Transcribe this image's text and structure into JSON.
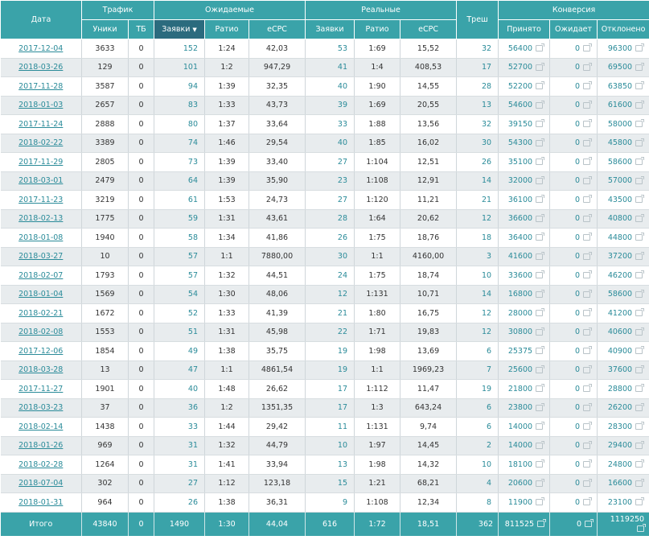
{
  "colors": {
    "header_bg": "#3aa3a9",
    "header_sorted_bg": "#2b6b7e",
    "link": "#2a8b99",
    "row_alt": "#e8ecee"
  },
  "header": {
    "date": "Дата",
    "traffic": "Трафик",
    "expected": "Ожидаемые",
    "real": "Реальные",
    "trash": "Треш",
    "conversion": "Конверсия",
    "uniques": "Уники",
    "tb": "ТБ",
    "requests": "Заявки",
    "requests_sort_icon": "sort-down-icon",
    "ratio_exp": "Ратио",
    "ecpc_exp": "eCPC",
    "requests_real": "Заявки",
    "ratio_real": "Ратио",
    "ecpc_real": "eCPC",
    "accepted": "Принято",
    "waiting": "Ожидает",
    "rejected": "Отклонено"
  },
  "rows": [
    {
      "date": "2017-12-04",
      "uniq": "3633",
      "tb": "0",
      "req": "152",
      "ratio": "1:24",
      "ecpc": "42,03",
      "rreq": "53",
      "rratio": "1:69",
      "recpc": "15,52",
      "trash": "32",
      "acc": "56400",
      "wait": "0",
      "rej": "96300"
    },
    {
      "date": "2018-03-26",
      "uniq": "129",
      "tb": "0",
      "req": "101",
      "ratio": "1:2",
      "ecpc": "947,29",
      "rreq": "41",
      "rratio": "1:4",
      "recpc": "408,53",
      "trash": "17",
      "acc": "52700",
      "wait": "0",
      "rej": "69500"
    },
    {
      "date": "2017-11-28",
      "uniq": "3587",
      "tb": "0",
      "req": "94",
      "ratio": "1:39",
      "ecpc": "32,35",
      "rreq": "40",
      "rratio": "1:90",
      "recpc": "14,55",
      "trash": "28",
      "acc": "52200",
      "wait": "0",
      "rej": "63850"
    },
    {
      "date": "2018-01-03",
      "uniq": "2657",
      "tb": "0",
      "req": "83",
      "ratio": "1:33",
      "ecpc": "43,73",
      "rreq": "39",
      "rratio": "1:69",
      "recpc": "20,55",
      "trash": "13",
      "acc": "54600",
      "wait": "0",
      "rej": "61600"
    },
    {
      "date": "2017-11-24",
      "uniq": "2888",
      "tb": "0",
      "req": "80",
      "ratio": "1:37",
      "ecpc": "33,64",
      "rreq": "33",
      "rratio": "1:88",
      "recpc": "13,56",
      "trash": "32",
      "acc": "39150",
      "wait": "0",
      "rej": "58000"
    },
    {
      "date": "2018-02-22",
      "uniq": "3389",
      "tb": "0",
      "req": "74",
      "ratio": "1:46",
      "ecpc": "29,54",
      "rreq": "40",
      "rratio": "1:85",
      "recpc": "16,02",
      "trash": "30",
      "acc": "54300",
      "wait": "0",
      "rej": "45800"
    },
    {
      "date": "2017-11-29",
      "uniq": "2805",
      "tb": "0",
      "req": "73",
      "ratio": "1:39",
      "ecpc": "33,40",
      "rreq": "27",
      "rratio": "1:104",
      "recpc": "12,51",
      "trash": "26",
      "acc": "35100",
      "wait": "0",
      "rej": "58600"
    },
    {
      "date": "2018-03-01",
      "uniq": "2479",
      "tb": "0",
      "req": "64",
      "ratio": "1:39",
      "ecpc": "35,90",
      "rreq": "23",
      "rratio": "1:108",
      "recpc": "12,91",
      "trash": "14",
      "acc": "32000",
      "wait": "0",
      "rej": "57000"
    },
    {
      "date": "2017-11-23",
      "uniq": "3219",
      "tb": "0",
      "req": "61",
      "ratio": "1:53",
      "ecpc": "24,73",
      "rreq": "27",
      "rratio": "1:120",
      "recpc": "11,21",
      "trash": "21",
      "acc": "36100",
      "wait": "0",
      "rej": "43500"
    },
    {
      "date": "2018-02-13",
      "uniq": "1775",
      "tb": "0",
      "req": "59",
      "ratio": "1:31",
      "ecpc": "43,61",
      "rreq": "28",
      "rratio": "1:64",
      "recpc": "20,62",
      "trash": "12",
      "acc": "36600",
      "wait": "0",
      "rej": "40800"
    },
    {
      "date": "2018-01-08",
      "uniq": "1940",
      "tb": "0",
      "req": "58",
      "ratio": "1:34",
      "ecpc": "41,86",
      "rreq": "26",
      "rratio": "1:75",
      "recpc": "18,76",
      "trash": "18",
      "acc": "36400",
      "wait": "0",
      "rej": "44800"
    },
    {
      "date": "2018-03-27",
      "uniq": "10",
      "tb": "0",
      "req": "57",
      "ratio": "1:1",
      "ecpc": "7880,00",
      "rreq": "30",
      "rratio": "1:1",
      "recpc": "4160,00",
      "trash": "3",
      "acc": "41600",
      "wait": "0",
      "rej": "37200"
    },
    {
      "date": "2018-02-07",
      "uniq": "1793",
      "tb": "0",
      "req": "57",
      "ratio": "1:32",
      "ecpc": "44,51",
      "rreq": "24",
      "rratio": "1:75",
      "recpc": "18,74",
      "trash": "10",
      "acc": "33600",
      "wait": "0",
      "rej": "46200"
    },
    {
      "date": "2018-01-04",
      "uniq": "1569",
      "tb": "0",
      "req": "54",
      "ratio": "1:30",
      "ecpc": "48,06",
      "rreq": "12",
      "rratio": "1:131",
      "recpc": "10,71",
      "trash": "14",
      "acc": "16800",
      "wait": "0",
      "rej": "58600"
    },
    {
      "date": "2018-02-21",
      "uniq": "1672",
      "tb": "0",
      "req": "52",
      "ratio": "1:33",
      "ecpc": "41,39",
      "rreq": "21",
      "rratio": "1:80",
      "recpc": "16,75",
      "trash": "12",
      "acc": "28000",
      "wait": "0",
      "rej": "41200"
    },
    {
      "date": "2018-02-08",
      "uniq": "1553",
      "tb": "0",
      "req": "51",
      "ratio": "1:31",
      "ecpc": "45,98",
      "rreq": "22",
      "rratio": "1:71",
      "recpc": "19,83",
      "trash": "12",
      "acc": "30800",
      "wait": "0",
      "rej": "40600"
    },
    {
      "date": "2017-12-06",
      "uniq": "1854",
      "tb": "0",
      "req": "49",
      "ratio": "1:38",
      "ecpc": "35,75",
      "rreq": "19",
      "rratio": "1:98",
      "recpc": "13,69",
      "trash": "6",
      "acc": "25375",
      "wait": "0",
      "rej": "40900"
    },
    {
      "date": "2018-03-28",
      "uniq": "13",
      "tb": "0",
      "req": "47",
      "ratio": "1:1",
      "ecpc": "4861,54",
      "rreq": "19",
      "rratio": "1:1",
      "recpc": "1969,23",
      "trash": "7",
      "acc": "25600",
      "wait": "0",
      "rej": "37600"
    },
    {
      "date": "2017-11-27",
      "uniq": "1901",
      "tb": "0",
      "req": "40",
      "ratio": "1:48",
      "ecpc": "26,62",
      "rreq": "17",
      "rratio": "1:112",
      "recpc": "11,47",
      "trash": "19",
      "acc": "21800",
      "wait": "0",
      "rej": "28800"
    },
    {
      "date": "2018-03-23",
      "uniq": "37",
      "tb": "0",
      "req": "36",
      "ratio": "1:2",
      "ecpc": "1351,35",
      "rreq": "17",
      "rratio": "1:3",
      "recpc": "643,24",
      "trash": "6",
      "acc": "23800",
      "wait": "0",
      "rej": "26200"
    },
    {
      "date": "2018-02-14",
      "uniq": "1438",
      "tb": "0",
      "req": "33",
      "ratio": "1:44",
      "ecpc": "29,42",
      "rreq": "11",
      "rratio": "1:131",
      "recpc": "9,74",
      "trash": "6",
      "acc": "14000",
      "wait": "0",
      "rej": "28300"
    },
    {
      "date": "2018-01-26",
      "uniq": "969",
      "tb": "0",
      "req": "31",
      "ratio": "1:32",
      "ecpc": "44,79",
      "rreq": "10",
      "rratio": "1:97",
      "recpc": "14,45",
      "trash": "2",
      "acc": "14000",
      "wait": "0",
      "rej": "29400"
    },
    {
      "date": "2018-02-28",
      "uniq": "1264",
      "tb": "0",
      "req": "31",
      "ratio": "1:41",
      "ecpc": "33,94",
      "rreq": "13",
      "rratio": "1:98",
      "recpc": "14,32",
      "trash": "10",
      "acc": "18100",
      "wait": "0",
      "rej": "24800"
    },
    {
      "date": "2018-07-04",
      "uniq": "302",
      "tb": "0",
      "req": "27",
      "ratio": "1:12",
      "ecpc": "123,18",
      "rreq": "15",
      "rratio": "1:21",
      "recpc": "68,21",
      "trash": "4",
      "acc": "20600",
      "wait": "0",
      "rej": "16600"
    },
    {
      "date": "2018-01-31",
      "uniq": "964",
      "tb": "0",
      "req": "26",
      "ratio": "1:38",
      "ecpc": "36,31",
      "rreq": "9",
      "rratio": "1:108",
      "recpc": "12,34",
      "trash": "8",
      "acc": "11900",
      "wait": "0",
      "rej": "23100"
    }
  ],
  "totals": {
    "label": "Итого",
    "uniq": "43840",
    "tb": "0",
    "req": "1490",
    "ratio": "1:30",
    "ecpc": "44,04",
    "rreq": "616",
    "rratio": "1:72",
    "recpc": "18,51",
    "trash": "362",
    "acc": "811525",
    "wait": "0",
    "rej": "1119250"
  }
}
